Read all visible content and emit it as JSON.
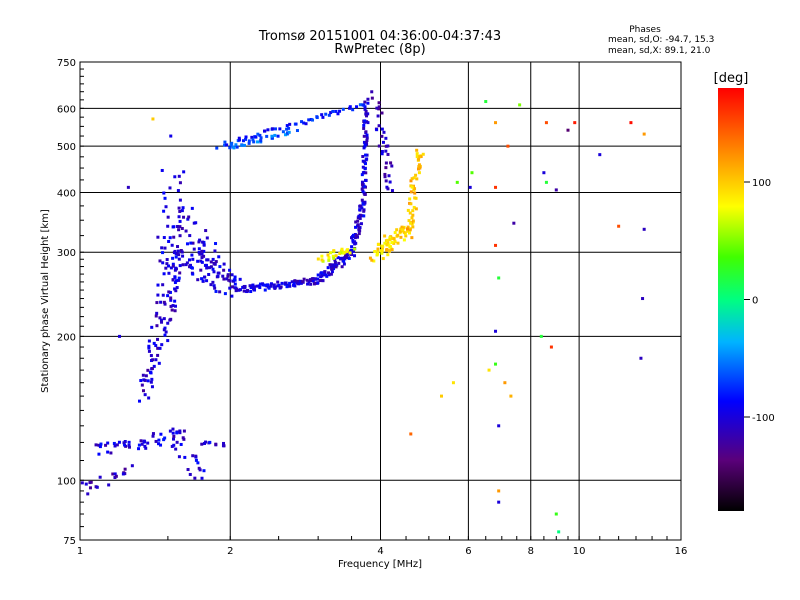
{
  "chart_data": {
    "type": "scatter",
    "title": "Tromsø 20151001 04:36:00-04:37:43",
    "subtitle": "RwPretec (8p)",
    "xlabel": "Frequency [MHz]",
    "ylabel": "Stationary phase Virtual Height [km]",
    "x_scale": "log",
    "y_scale": "log",
    "xlim": [
      1,
      16
    ],
    "ylim": [
      75,
      750
    ],
    "x_ticks": [
      1,
      2,
      4,
      6,
      8,
      10,
      16
    ],
    "x_tick_labels": [
      "1",
      "2",
      "4",
      "6",
      "8",
      "10",
      "16"
    ],
    "y_ticks": [
      75,
      100,
      200,
      300,
      400,
      500,
      600,
      750
    ],
    "y_tick_labels": [
      "75",
      "100",
      "200",
      "300",
      "400",
      "500",
      "600",
      "750"
    ],
    "grid": true,
    "stats": {
      "title": "Phases",
      "line_o": "mean, sd,O: -94.7, 15.3",
      "line_x": "mean, sd,X:  89.1, 21.0"
    },
    "colorbar": {
      "label": "[deg]",
      "range": [
        -180,
        180
      ],
      "ticks": [
        100,
        0,
        -100
      ],
      "tick_labels": [
        "100",
        "0",
        "-100"
      ]
    },
    "traces": [
      {
        "kind": "band",
        "phase": -100,
        "start": [
          1.52,
          440
        ],
        "end": [
          1.52,
          240
        ],
        "count": 45,
        "spread": [
          0.06,
          0.05
        ]
      },
      {
        "kind": "band",
        "phase": -100,
        "start": [
          1.5,
          300
        ],
        "end": [
          2.05,
          255
        ],
        "count": 70,
        "spread": [
          0.05,
          0.06
        ]
      },
      {
        "kind": "band",
        "phase": -100,
        "start": [
          1.6,
          360
        ],
        "end": [
          1.95,
          260
        ],
        "count": 55,
        "spread": [
          0.05,
          0.05
        ]
      },
      {
        "kind": "band",
        "phase": -100,
        "start": [
          2.05,
          250
        ],
        "end": [
          3.0,
          262
        ],
        "count": 90,
        "spread": [
          0.02,
          0.015
        ]
      },
      {
        "kind": "band",
        "phase": -100,
        "start": [
          3.0,
          262
        ],
        "end": [
          3.5,
          300
        ],
        "count": 60,
        "spread": [
          0.02,
          0.02
        ]
      },
      {
        "kind": "band",
        "phase": -100,
        "start": [
          3.5,
          300
        ],
        "end": [
          3.7,
          380
        ],
        "count": 50,
        "spread": [
          0.015,
          0.02
        ]
      },
      {
        "kind": "band",
        "phase": -100,
        "start": [
          3.7,
          380
        ],
        "end": [
          3.75,
          620
        ],
        "count": 60,
        "spread": [
          0.01,
          0.02
        ]
      },
      {
        "kind": "band",
        "phase": -80,
        "start": [
          1.9,
          500
        ],
        "end": [
          3.7,
          610
        ],
        "count": 55,
        "spread": [
          0.015,
          0.01
        ]
      },
      {
        "kind": "band",
        "phase": -60,
        "start": [
          2.0,
          495
        ],
        "end": [
          2.7,
          540
        ],
        "count": 30,
        "spread": [
          0.02,
          0.01
        ]
      },
      {
        "kind": "band",
        "phase": -110,
        "start": [
          3.9,
          630
        ],
        "end": [
          4.2,
          400
        ],
        "count": 35,
        "spread": [
          0.02,
          0.04
        ]
      },
      {
        "kind": "band",
        "phase": 95,
        "start": [
          3.9,
          295
        ],
        "end": [
          4.55,
          340
        ],
        "count": 70,
        "spread": [
          0.03,
          0.03
        ]
      },
      {
        "kind": "band",
        "phase": 105,
        "start": [
          4.55,
          330
        ],
        "end": [
          4.8,
          500
        ],
        "count": 50,
        "spread": [
          0.02,
          0.04
        ]
      },
      {
        "kind": "band",
        "phase": 80,
        "start": [
          3.05,
          290
        ],
        "end": [
          3.5,
          305
        ],
        "count": 25,
        "spread": [
          0.02,
          0.015
        ]
      },
      {
        "kind": "band",
        "phase": -105,
        "start": [
          1.35,
          150
        ],
        "end": [
          1.55,
          280
        ],
        "count": 80,
        "spread": [
          0.04,
          0.05
        ]
      },
      {
        "kind": "band",
        "phase": -100,
        "start": [
          1.1,
          115
        ],
        "end": [
          1.6,
          125
        ],
        "count": 50,
        "spread": [
          0.04,
          0.03
        ]
      },
      {
        "kind": "band",
        "phase": -110,
        "start": [
          1.0,
          95
        ],
        "end": [
          1.25,
          105
        ],
        "count": 20,
        "spread": [
          0.03,
          0.03
        ]
      },
      {
        "kind": "band",
        "phase": -100,
        "start": [
          1.55,
          120
        ],
        "end": [
          1.75,
          100
        ],
        "count": 20,
        "spread": [
          0.04,
          0.04
        ]
      },
      {
        "kind": "band",
        "phase": -100,
        "start": [
          1.75,
          120
        ],
        "end": [
          1.95,
          118
        ],
        "count": 10,
        "spread": [
          0.02,
          0.01
        ]
      }
    ],
    "points": [
      [
        1.4,
        570,
        100
      ],
      [
        1.52,
        525,
        -95
      ],
      [
        1.25,
        410,
        -110
      ],
      [
        1.2,
        200,
        -100
      ],
      [
        6.1,
        440,
        40
      ],
      [
        6.05,
        410,
        -100
      ],
      [
        6.5,
        620,
        20
      ],
      [
        6.8,
        560,
        120
      ],
      [
        7.2,
        500,
        150
      ],
      [
        6.8,
        410,
        160
      ],
      [
        8.5,
        440,
        -100
      ],
      [
        8.6,
        420,
        20
      ],
      [
        9.0,
        405,
        -120
      ],
      [
        9.8,
        560,
        170
      ],
      [
        9.5,
        540,
        -140
      ],
      [
        8.6,
        560,
        150
      ],
      [
        11.0,
        480,
        -100
      ],
      [
        12.0,
        340,
        150
      ],
      [
        12.7,
        560,
        175
      ],
      [
        13.5,
        530,
        120
      ],
      [
        13.5,
        335,
        -110
      ],
      [
        13.4,
        240,
        -110
      ],
      [
        13.3,
        180,
        -110
      ],
      [
        6.8,
        310,
        160
      ],
      [
        6.9,
        265,
        20
      ],
      [
        6.8,
        205,
        -100
      ],
      [
        7.1,
        160,
        120
      ],
      [
        7.3,
        150,
        110
      ],
      [
        6.6,
        170,
        90
      ],
      [
        6.8,
        175,
        30
      ],
      [
        6.9,
        130,
        -100
      ],
      [
        6.9,
        90,
        -100
      ],
      [
        6.9,
        95,
        120
      ],
      [
        8.4,
        200,
        20
      ],
      [
        8.8,
        190,
        160
      ],
      [
        9.0,
        85,
        30
      ],
      [
        9.1,
        78,
        0
      ],
      [
        5.6,
        160,
        90
      ],
      [
        5.3,
        150,
        100
      ],
      [
        4.6,
        125,
        140
      ],
      [
        5.7,
        420,
        40
      ],
      [
        7.6,
        610,
        50
      ],
      [
        7.4,
        345,
        -120
      ]
    ]
  }
}
